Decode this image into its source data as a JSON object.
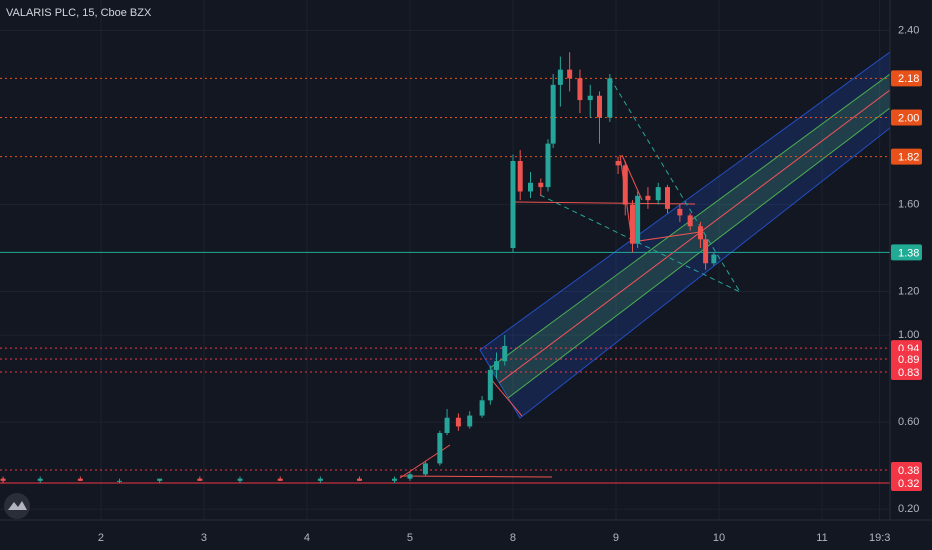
{
  "chart_data": {
    "type": "candlestick",
    "title": "VALARIS PLC, 15, Cboe BZX",
    "xlim": [
      0.02,
      8.66
    ],
    "ylim": [
      0.15,
      2.54
    ],
    "xticks": [
      {
        "value": 1,
        "label": "2"
      },
      {
        "value": 2,
        "label": "3"
      },
      {
        "value": 3,
        "label": "4"
      },
      {
        "value": 4,
        "label": "5"
      },
      {
        "value": 5,
        "label": "8"
      },
      {
        "value": 6,
        "label": "9"
      },
      {
        "value": 7,
        "label": "10"
      },
      {
        "value": 8,
        "label": "11"
      },
      {
        "value": 8.56,
        "label": "19:3"
      }
    ],
    "yticks": [
      {
        "value": 2.4,
        "label": "2.40"
      },
      {
        "value": 1.6,
        "label": "1.60"
      },
      {
        "value": 1.2,
        "label": "1.20"
      },
      {
        "value": 1,
        "label": "1.00"
      },
      {
        "value": 0.6,
        "label": "0.60"
      },
      {
        "value": 0.2,
        "label": "0.20"
      }
    ],
    "grid": true,
    "up_color": "#26a69a",
    "down_color": "#ef5350",
    "candles": {
      "x": [
        0.05,
        0.41,
        0.8,
        1.18,
        1.57,
        1.96,
        2.35,
        2.74,
        3.13,
        3.51,
        3.85,
        4.0,
        4.15,
        4.29,
        4.36,
        4.47,
        4.58,
        4.7,
        4.78,
        4.84,
        4.92,
        5.0,
        5.07,
        5.17,
        5.27,
        5.34,
        5.39,
        5.46,
        5.55,
        5.65,
        5.75,
        5.84,
        5.94,
        6.02,
        6.09,
        6.16,
        6.21,
        6.31,
        6.41,
        6.5,
        6.62,
        6.72,
        6.82,
        6.87,
        6.95
      ],
      "open": [
        0.34,
        0.33,
        0.34,
        0.33,
        0.33,
        0.34,
        0.33,
        0.34,
        0.33,
        0.34,
        0.33,
        0.34,
        0.36,
        0.41,
        0.55,
        0.62,
        0.58,
        0.63,
        0.7,
        0.84,
        0.88,
        1.4,
        1.8,
        1.66,
        1.7,
        1.68,
        1.88,
        2.15,
        2.22,
        2.18,
        2.08,
        2.1,
        2.0,
        1.8,
        1.78,
        1.6,
        1.42,
        1.64,
        1.62,
        1.68,
        1.58,
        1.55,
        1.5,
        1.44,
        1.33
      ],
      "high": [
        0.35,
        0.35,
        0.35,
        0.34,
        0.34,
        0.35,
        0.35,
        0.35,
        0.35,
        0.35,
        0.35,
        0.37,
        0.42,
        0.56,
        0.66,
        0.64,
        0.65,
        0.72,
        0.86,
        0.92,
        1.0,
        1.83,
        1.85,
        1.75,
        1.72,
        1.9,
        2.2,
        2.28,
        2.3,
        2.22,
        2.15,
        2.12,
        2.2,
        1.82,
        1.8,
        1.62,
        1.66,
        1.68,
        1.7,
        1.69,
        1.6,
        1.56,
        1.52,
        1.46,
        1.38
      ],
      "low": [
        0.32,
        0.32,
        0.33,
        0.32,
        0.32,
        0.33,
        0.32,
        0.33,
        0.32,
        0.33,
        0.32,
        0.33,
        0.35,
        0.4,
        0.54,
        0.56,
        0.57,
        0.62,
        0.68,
        0.8,
        0.86,
        1.38,
        1.62,
        1.63,
        1.64,
        1.66,
        1.86,
        2.05,
        2.12,
        2.02,
        2.0,
        1.88,
        1.98,
        1.74,
        1.55,
        1.38,
        1.4,
        1.58,
        1.6,
        1.56,
        1.52,
        1.48,
        1.4,
        1.3,
        1.32
      ],
      "close": [
        0.33,
        0.34,
        0.33,
        0.33,
        0.34,
        0.33,
        0.34,
        0.33,
        0.34,
        0.33,
        0.34,
        0.36,
        0.41,
        0.55,
        0.62,
        0.58,
        0.63,
        0.7,
        0.84,
        0.88,
        0.95,
        1.8,
        1.66,
        1.7,
        1.68,
        1.88,
        2.15,
        2.22,
        2.18,
        2.08,
        2.1,
        2.0,
        2.18,
        1.78,
        1.6,
        1.42,
        1.64,
        1.62,
        1.68,
        1.58,
        1.55,
        1.5,
        1.44,
        1.33,
        1.37
      ]
    },
    "levels": [
      {
        "value": 2.18,
        "color": "#e8521a",
        "line": "dotted"
      },
      {
        "value": {
          "value": 2,
          "label": "2.00"
        },
        "color": "#e8521a",
        "line": "dotted"
      },
      {
        "value": 1.82,
        "color": "#e8521a",
        "line": "dotted"
      },
      {
        "value": 1.38,
        "color": "#22ab94",
        "line": "solid"
      },
      {
        "value": 0.94,
        "color": "#f23645",
        "line": "dotted"
      },
      {
        "value": 0.89,
        "color": "#f23645",
        "line": "dotted"
      },
      {
        "value": 0.83,
        "color": "#f23645",
        "line": "dotted"
      },
      {
        "value": 0.38,
        "color": "#f23645",
        "line": "dotted"
      },
      {
        "value": 0.32,
        "color": "#f23645",
        "line": "solid"
      }
    ]
  }
}
